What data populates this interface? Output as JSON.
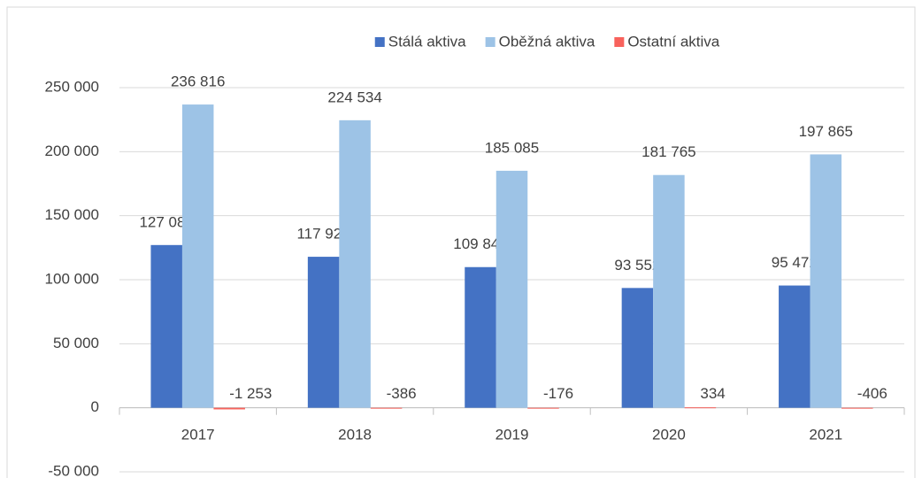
{
  "chart_data": {
    "type": "bar",
    "categories": [
      "2017",
      "2018",
      "2019",
      "2020",
      "2021"
    ],
    "series": [
      {
        "name": "Stálá aktiva",
        "color": "#4472c4",
        "values": [
          127080,
          117923,
          109847,
          93552,
          95472
        ],
        "value_labels": [
          "127 080",
          "117 923",
          "109 847",
          "93 552",
          "95 472"
        ]
      },
      {
        "name": "Oběžná aktiva",
        "color": "#9dc3e6",
        "values": [
          236816,
          224534,
          185085,
          181765,
          197865
        ],
        "value_labels": [
          "236 816",
          "224 534",
          "185 085",
          "181 765",
          "197 865"
        ]
      },
      {
        "name": "Ostatní aktiva",
        "color": "#f8625c",
        "values": [
          -1253,
          -386,
          -176,
          334,
          -406
        ],
        "value_labels": [
          "-1 253",
          "-386",
          "-176",
          "334",
          "-406"
        ]
      }
    ],
    "ylim": [
      -50000,
      250000
    ],
    "yticks": [
      {
        "value": -50000,
        "label": "-50 000"
      },
      0,
      {
        "value": 50000,
        "label": "50 000"
      },
      {
        "value": 100000,
        "label": "100 000"
      },
      {
        "value": 150000,
        "label": "150 000"
      },
      {
        "value": 200000,
        "label": "200 000"
      },
      {
        "value": 250000,
        "label": "250 000"
      }
    ],
    "grid": true,
    "legend": "top"
  }
}
